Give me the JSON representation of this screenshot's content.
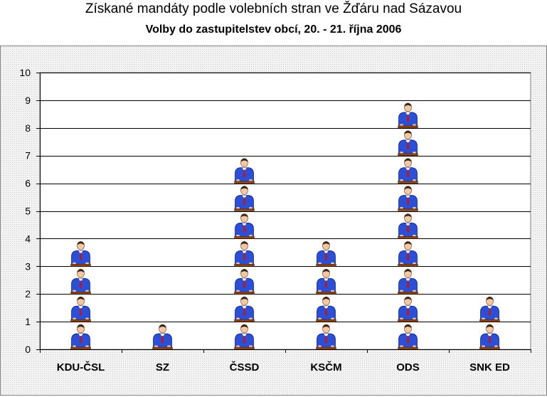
{
  "chart_data": {
    "type": "bar",
    "title": "Získané mandáty podle volebních stran ve Žďáru nad Sázavou",
    "subtitle": "Volby do zastupitelstev obcí, 20. - 21. října 2006",
    "categories": [
      "KDU-ČSL",
      "SZ",
      "ČSSD",
      "KSČM",
      "ODS",
      "SNK ED"
    ],
    "values": [
      4,
      1,
      7,
      4,
      9,
      2
    ],
    "ylim": [
      0,
      10
    ],
    "yticks": [
      0,
      1,
      2,
      3,
      4,
      5,
      6,
      7,
      8,
      9,
      10
    ],
    "grid": true,
    "legend": "none",
    "bar_style": "stacked-pictograms",
    "colors": {
      "gridline": "#000000",
      "plot_bg": "#ffffff",
      "suit": "#2b4fd6",
      "podium": "#8b4513"
    }
  }
}
